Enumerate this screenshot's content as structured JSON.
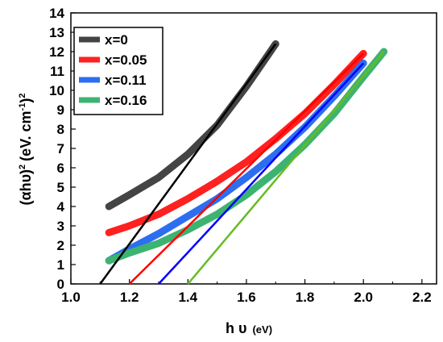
{
  "chart_data": {
    "type": "line",
    "xlabel_main": "h υ",
    "xlabel_unit": "(eV)",
    "ylabel": "(αhυ)",
    "ylabel_unit": "(eV. cm",
    "ylabel_sup1": "2",
    "ylabel_sup2": "-1",
    "ylabel_sup3": "2",
    "ylabel_close": ")",
    "xlim": [
      1.0,
      2.25
    ],
    "ylim": [
      0,
      14
    ],
    "x_ticks": [
      "1.0",
      "1.2",
      "1.4",
      "1.6",
      "1.8",
      "2.0",
      "2.2"
    ],
    "y_ticks": [
      "0",
      "1",
      "2",
      "3",
      "4",
      "5",
      "6",
      "7",
      "8",
      "9",
      "10",
      "11",
      "12",
      "13",
      "14"
    ],
    "grid": false,
    "legend_position": "top-left",
    "series": [
      {
        "name": "x=0",
        "color": "#444444",
        "x": [
          1.13,
          1.2,
          1.3,
          1.4,
          1.5,
          1.6,
          1.65,
          1.7
        ],
        "y": [
          4.0,
          4.6,
          5.5,
          6.7,
          8.2,
          10.2,
          11.3,
          12.4
        ],
        "fit": {
          "x": [
            1.1,
            1.7
          ],
          "y": [
            0,
            12.4
          ],
          "color": "#000000"
        }
      },
      {
        "name": "x=0.05",
        "color": "#ff2020",
        "x": [
          1.13,
          1.2,
          1.3,
          1.4,
          1.5,
          1.6,
          1.7,
          1.8,
          1.9,
          2.0
        ],
        "y": [
          2.65,
          3.0,
          3.6,
          4.4,
          5.3,
          6.3,
          7.5,
          8.8,
          10.3,
          11.9
        ],
        "fit": {
          "x": [
            1.2,
            2.0
          ],
          "y": [
            0,
            11.9
          ],
          "color": "#ff0000"
        }
      },
      {
        "name": "x=0.11",
        "color": "#2d6ef0",
        "x": [
          1.13,
          1.2,
          1.3,
          1.4,
          1.5,
          1.6,
          1.7,
          1.8,
          1.9,
          2.0
        ],
        "y": [
          1.2,
          1.8,
          2.6,
          3.5,
          4.4,
          5.5,
          6.7,
          8.1,
          9.7,
          11.4
        ],
        "fit": {
          "x": [
            1.3,
            2.0
          ],
          "y": [
            0,
            11.4
          ],
          "color": "#0000ff"
        }
      },
      {
        "name": "x=0.16",
        "color": "#3cb371",
        "x": [
          1.13,
          1.2,
          1.3,
          1.4,
          1.5,
          1.6,
          1.7,
          1.8,
          1.9,
          2.0,
          2.07
        ],
        "y": [
          1.2,
          1.6,
          2.1,
          2.8,
          3.6,
          4.6,
          5.8,
          7.2,
          8.8,
          10.7,
          12.0
        ],
        "fit": {
          "x": [
            1.4,
            2.07
          ],
          "y": [
            0,
            12.0
          ],
          "color": "#66bb22"
        }
      }
    ]
  }
}
